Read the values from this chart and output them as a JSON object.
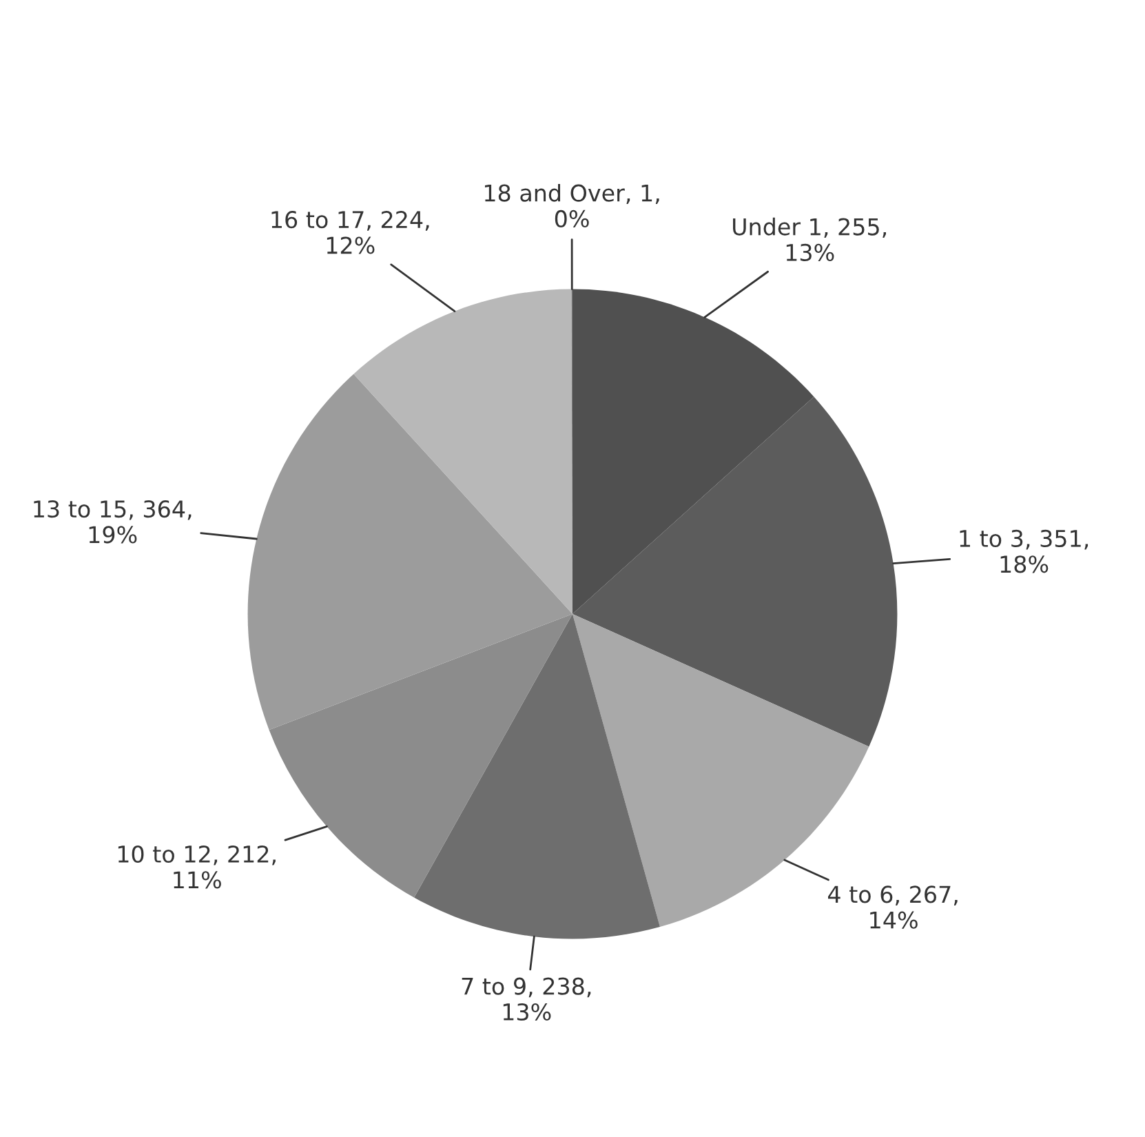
{
  "chart_data": {
    "type": "pie",
    "categories": [
      "Under 1",
      "1 to 3",
      "4 to 6",
      "7 to 9",
      "10 to 12",
      "13 to 15",
      "16 to 17",
      "18 and Over"
    ],
    "values": [
      255,
      351,
      267,
      238,
      212,
      364,
      224,
      1
    ],
    "value_labels": [
      "255, 13%",
      "351, 18%",
      "267, 14%",
      "238, 13%",
      "212, 11%",
      "364, 19%",
      "224, 12%",
      "1, 0%"
    ],
    "colors": [
      "#505050",
      "#5c5c5c",
      "#a9a9a9",
      "#6e6e6e",
      "#8c8c8c",
      "#9c9c9c",
      "#b8b8b8",
      "#808080"
    ]
  }
}
